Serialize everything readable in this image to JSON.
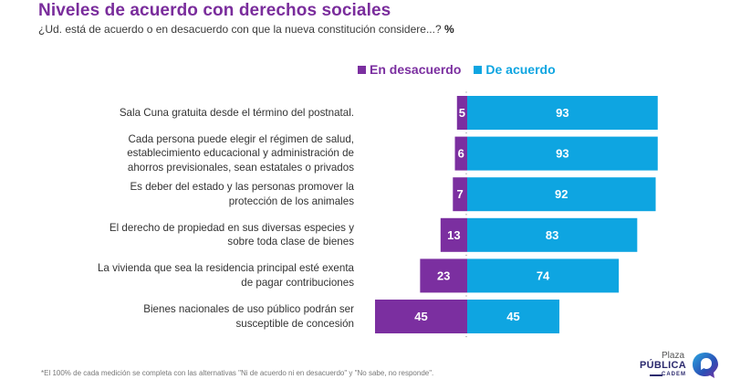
{
  "header": {
    "title": "Niveles de acuerdo con derechos sociales",
    "subtitle": "¿Ud. está de acuerdo o en desacuerdo con que la nueva constitución considere...?",
    "unit": "%"
  },
  "colors": {
    "disagree": "#7b2fa0",
    "agree": "#0ea5e1",
    "title": "#7a2d9c"
  },
  "chart_data": {
    "type": "bar",
    "orientation": "horizontal-diverging",
    "title": "Niveles de acuerdo con derechos sociales",
    "subtitle": "¿Ud. está de acuerdo o en desacuerdo con que la nueva constitución considere...? %",
    "legend": [
      "En desacuerdo",
      "De acuerdo"
    ],
    "legend_position": "top-right",
    "categories": [
      [
        "Sala Cuna gratuita desde el término del postnatal."
      ],
      [
        "Cada persona puede elegir el régimen de salud,",
        "establecimiento educacional y administración de",
        "ahorros previsionales, sean estatales o privados"
      ],
      [
        "Es deber del estado y las personas promover la",
        "protección de los animales"
      ],
      [
        "El derecho de propiedad en sus diversas especies y",
        "sobre toda clase de bienes"
      ],
      [
        "La vivienda que sea la residencia principal esté exenta",
        "de pagar contribuciones"
      ],
      [
        "Bienes nacionales de uso público podrán ser",
        "susceptible de concesión"
      ]
    ],
    "series": [
      {
        "name": "En desacuerdo",
        "values": [
          5,
          6,
          7,
          13,
          23,
          45
        ]
      },
      {
        "name": "De acuerdo",
        "values": [
          93,
          93,
          92,
          83,
          74,
          45
        ]
      }
    ],
    "xlim": [
      -45,
      93
    ],
    "grid": false
  },
  "footnote": "*El 100% de cada medición se completa con las alternativas \"Ni de acuerdo ni en desacuerdo\" y  \"No sabe, no responde\".",
  "logo": {
    "line1": "Plaza",
    "line2": "PÚBLICA",
    "line3": "CADEM"
  }
}
